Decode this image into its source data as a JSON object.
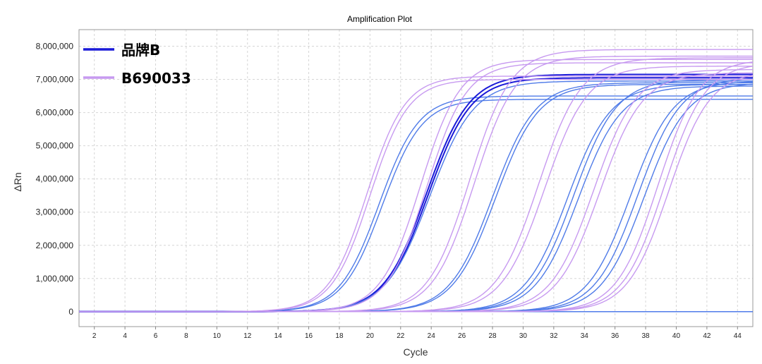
{
  "chart_data": {
    "type": "line",
    "title": "Amplification Plot",
    "xlabel": "Cycle",
    "ylabel": "ΔRn",
    "xlim": [
      1,
      45
    ],
    "ylim": [
      -450000,
      8500000
    ],
    "x_ticks": [
      2,
      4,
      6,
      8,
      10,
      12,
      14,
      16,
      18,
      20,
      22,
      24,
      26,
      28,
      30,
      32,
      34,
      36,
      38,
      40,
      42,
      44
    ],
    "y_ticks": [
      0,
      1000000,
      2000000,
      3000000,
      4000000,
      5000000,
      6000000,
      7000000,
      8000000
    ],
    "y_tick_labels": [
      "0",
      "1,000,000",
      "2,000,000",
      "3,000,000",
      "4,000,000",
      "5,000,000",
      "6,000,000",
      "7,000,000",
      "8,000,000"
    ],
    "grid": true,
    "legend_position": "top-left",
    "colors": {
      "brand_b": "#1a1ad8",
      "brand_b_replicates": "#4f7be8",
      "b690033": "#c79af0"
    },
    "legend": [
      {
        "label": "品牌B",
        "color": "#1a1ad8"
      },
      {
        "label": "B690033",
        "color": "#c79af0"
      }
    ],
    "series": [
      {
        "group": "品牌B",
        "color": "#4f7be8",
        "midpoint": 20.6,
        "slope": 1.3,
        "plateau": 6500000
      },
      {
        "group": "品牌B",
        "color": "#4f7be8",
        "midpoint": 20.8,
        "slope": 1.3,
        "plateau": 6400000
      },
      {
        "group": "品牌B",
        "color": "#1a1ad8",
        "midpoint": 23.7,
        "slope": 1.4,
        "plateau": 7150000
      },
      {
        "group": "品牌B",
        "color": "#1a1ad8",
        "midpoint": 23.8,
        "slope": 1.4,
        "plateau": 7050000
      },
      {
        "group": "品牌B",
        "color": "#4f7be8",
        "midpoint": 23.9,
        "slope": 1.45,
        "plateau": 6950000
      },
      {
        "group": "品牌B",
        "color": "#4f7be8",
        "midpoint": 28.0,
        "slope": 1.4,
        "plateau": 6900000
      },
      {
        "group": "品牌B",
        "color": "#4f7be8",
        "midpoint": 28.2,
        "slope": 1.4,
        "plateau": 6850000
      },
      {
        "group": "品牌B",
        "color": "#4f7be8",
        "midpoint": 32.9,
        "slope": 1.4,
        "plateau": 6850000
      },
      {
        "group": "品牌B",
        "color": "#4f7be8",
        "midpoint": 33.3,
        "slope": 1.4,
        "plateau": 7000000
      },
      {
        "group": "品牌B",
        "color": "#4f7be8",
        "midpoint": 33.6,
        "slope": 1.4,
        "plateau": 6800000
      },
      {
        "group": "品牌B",
        "color": "#4f7be8",
        "midpoint": 37.0,
        "slope": 1.4,
        "plateau": 6950000
      },
      {
        "group": "品牌B",
        "color": "#4f7be8",
        "midpoint": 37.5,
        "slope": 1.4,
        "plateau": 7050000
      },
      {
        "group": "品牌B",
        "color": "#4f7be8",
        "midpoint": 37.9,
        "slope": 1.4,
        "plateau": 6900000
      },
      {
        "group": "品牌B",
        "color": "#3f6fe8",
        "midpoint": 0,
        "slope": 1,
        "plateau": 0
      },
      {
        "group": "B690033",
        "color": "#c79af0",
        "midpoint": 19.8,
        "slope": 1.25,
        "plateau": 7100000
      },
      {
        "group": "B690033",
        "color": "#c79af0",
        "midpoint": 20.0,
        "slope": 1.25,
        "plateau": 7000000
      },
      {
        "group": "B690033",
        "color": "#c79af0",
        "midpoint": 23.3,
        "slope": 1.3,
        "plateau": 7600000
      },
      {
        "group": "B690033",
        "color": "#c79af0",
        "midpoint": 23.7,
        "slope": 1.3,
        "plateau": 7500000
      },
      {
        "group": "B690033",
        "color": "#c79af0",
        "midpoint": 26.5,
        "slope": 1.35,
        "plateau": 7900000
      },
      {
        "group": "B690033",
        "color": "#c79af0",
        "midpoint": 26.8,
        "slope": 1.35,
        "plateau": 7700000
      },
      {
        "group": "B690033",
        "color": "#c79af0",
        "midpoint": 31.0,
        "slope": 1.4,
        "plateau": 7650000
      },
      {
        "group": "B690033",
        "color": "#c79af0",
        "midpoint": 31.4,
        "slope": 1.4,
        "plateau": 7400000
      },
      {
        "group": "B690033",
        "color": "#c79af0",
        "midpoint": 34.6,
        "slope": 1.4,
        "plateau": 7300000
      },
      {
        "group": "B690033",
        "color": "#c79af0",
        "midpoint": 35.0,
        "slope": 1.4,
        "plateau": 7200000
      },
      {
        "group": "B690033",
        "color": "#c79af0",
        "midpoint": 38.8,
        "slope": 1.35,
        "plateau": 7600000
      },
      {
        "group": "B690033",
        "color": "#c79af0",
        "midpoint": 39.2,
        "slope": 1.35,
        "plateau": 7500000
      },
      {
        "group": "B690033",
        "color": "#c79af0",
        "midpoint": 39.5,
        "slope": 1.35,
        "plateau": 7250000
      }
    ]
  }
}
